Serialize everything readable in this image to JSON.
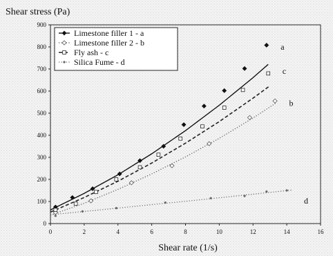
{
  "chart_data": {
    "type": "line",
    "title": "",
    "ylabel": "Shear stress (Pa)",
    "xlabel": "Shear rate (1/s)",
    "xlim": [
      0,
      16
    ],
    "ylim": [
      0,
      900
    ],
    "x_ticks": [
      0,
      2,
      4,
      6,
      8,
      10,
      12,
      14,
      16
    ],
    "y_ticks": [
      0,
      100,
      200,
      300,
      400,
      500,
      600,
      700,
      800,
      900
    ],
    "grid": false,
    "legend_position": "top-left",
    "series": [
      {
        "name": "Limestone filler 1 - a",
        "label": "a",
        "color": "#111111",
        "line_style": "solid",
        "marker": "filled-diamond",
        "points": [
          [
            0.3,
            75
          ],
          [
            1.3,
            118
          ],
          [
            2.5,
            158
          ],
          [
            4.1,
            225
          ],
          [
            5.3,
            285
          ],
          [
            6.7,
            350
          ],
          [
            7.9,
            448
          ],
          [
            9.1,
            532
          ],
          [
            10.3,
            602
          ],
          [
            11.5,
            702
          ],
          [
            12.8,
            808
          ]
        ],
        "fit": [
          [
            0,
            62
          ],
          [
            2,
            137
          ],
          [
            4,
            221
          ],
          [
            6,
            316
          ],
          [
            8,
            421
          ],
          [
            10,
            536
          ],
          [
            12,
            661
          ],
          [
            12.9,
            721
          ]
        ]
      },
      {
        "name": "Limestone filler 2 - b",
        "label": "b",
        "color": "#555555",
        "line_style": "dotted",
        "marker": "hollow-diamond",
        "points": [
          [
            0.3,
            50
          ],
          [
            2.4,
            103
          ],
          [
            4.8,
            185
          ],
          [
            7.2,
            262
          ],
          [
            9.4,
            362
          ],
          [
            11.8,
            480
          ],
          [
            13.3,
            555
          ]
        ],
        "fit": [
          [
            0,
            38
          ],
          [
            2,
            92
          ],
          [
            4,
            155
          ],
          [
            6,
            225
          ],
          [
            8,
            302
          ],
          [
            10,
            386
          ],
          [
            12,
            478
          ],
          [
            13.4,
            548
          ]
        ]
      },
      {
        "name": "Fly ash - c",
        "label": "c",
        "color": "#222222",
        "line_style": "dashed",
        "marker": "hollow-square",
        "points": [
          [
            0.3,
            62
          ],
          [
            1.5,
            90
          ],
          [
            2.7,
            143
          ],
          [
            3.9,
            200
          ],
          [
            5.3,
            255
          ],
          [
            6.4,
            312
          ],
          [
            7.7,
            385
          ],
          [
            9.0,
            440
          ],
          [
            10.3,
            525
          ],
          [
            11.4,
            605
          ],
          [
            12.9,
            680
          ]
        ],
        "fit": [
          [
            0,
            52
          ],
          [
            2,
            118
          ],
          [
            4,
            192
          ],
          [
            6,
            274
          ],
          [
            8,
            364
          ],
          [
            10,
            462
          ],
          [
            12,
            568
          ],
          [
            13,
            624
          ]
        ]
      },
      {
        "name": "Silica Fume - d",
        "label": "d",
        "color": "#666666",
        "line_style": "dotted",
        "marker": "small-dot",
        "points": [
          [
            0.3,
            35
          ],
          [
            1.9,
            55
          ],
          [
            3.9,
            70
          ],
          [
            6.8,
            95
          ],
          [
            9.5,
            115
          ],
          [
            11.5,
            125
          ],
          [
            12.8,
            145
          ],
          [
            14.0,
            150
          ]
        ],
        "fit": [
          [
            0,
            40
          ],
          [
            2,
            55
          ],
          [
            4,
            70
          ],
          [
            6,
            86
          ],
          [
            8,
            101
          ],
          [
            10,
            117
          ],
          [
            12,
            133
          ],
          [
            14.3,
            152
          ]
        ]
      }
    ]
  }
}
